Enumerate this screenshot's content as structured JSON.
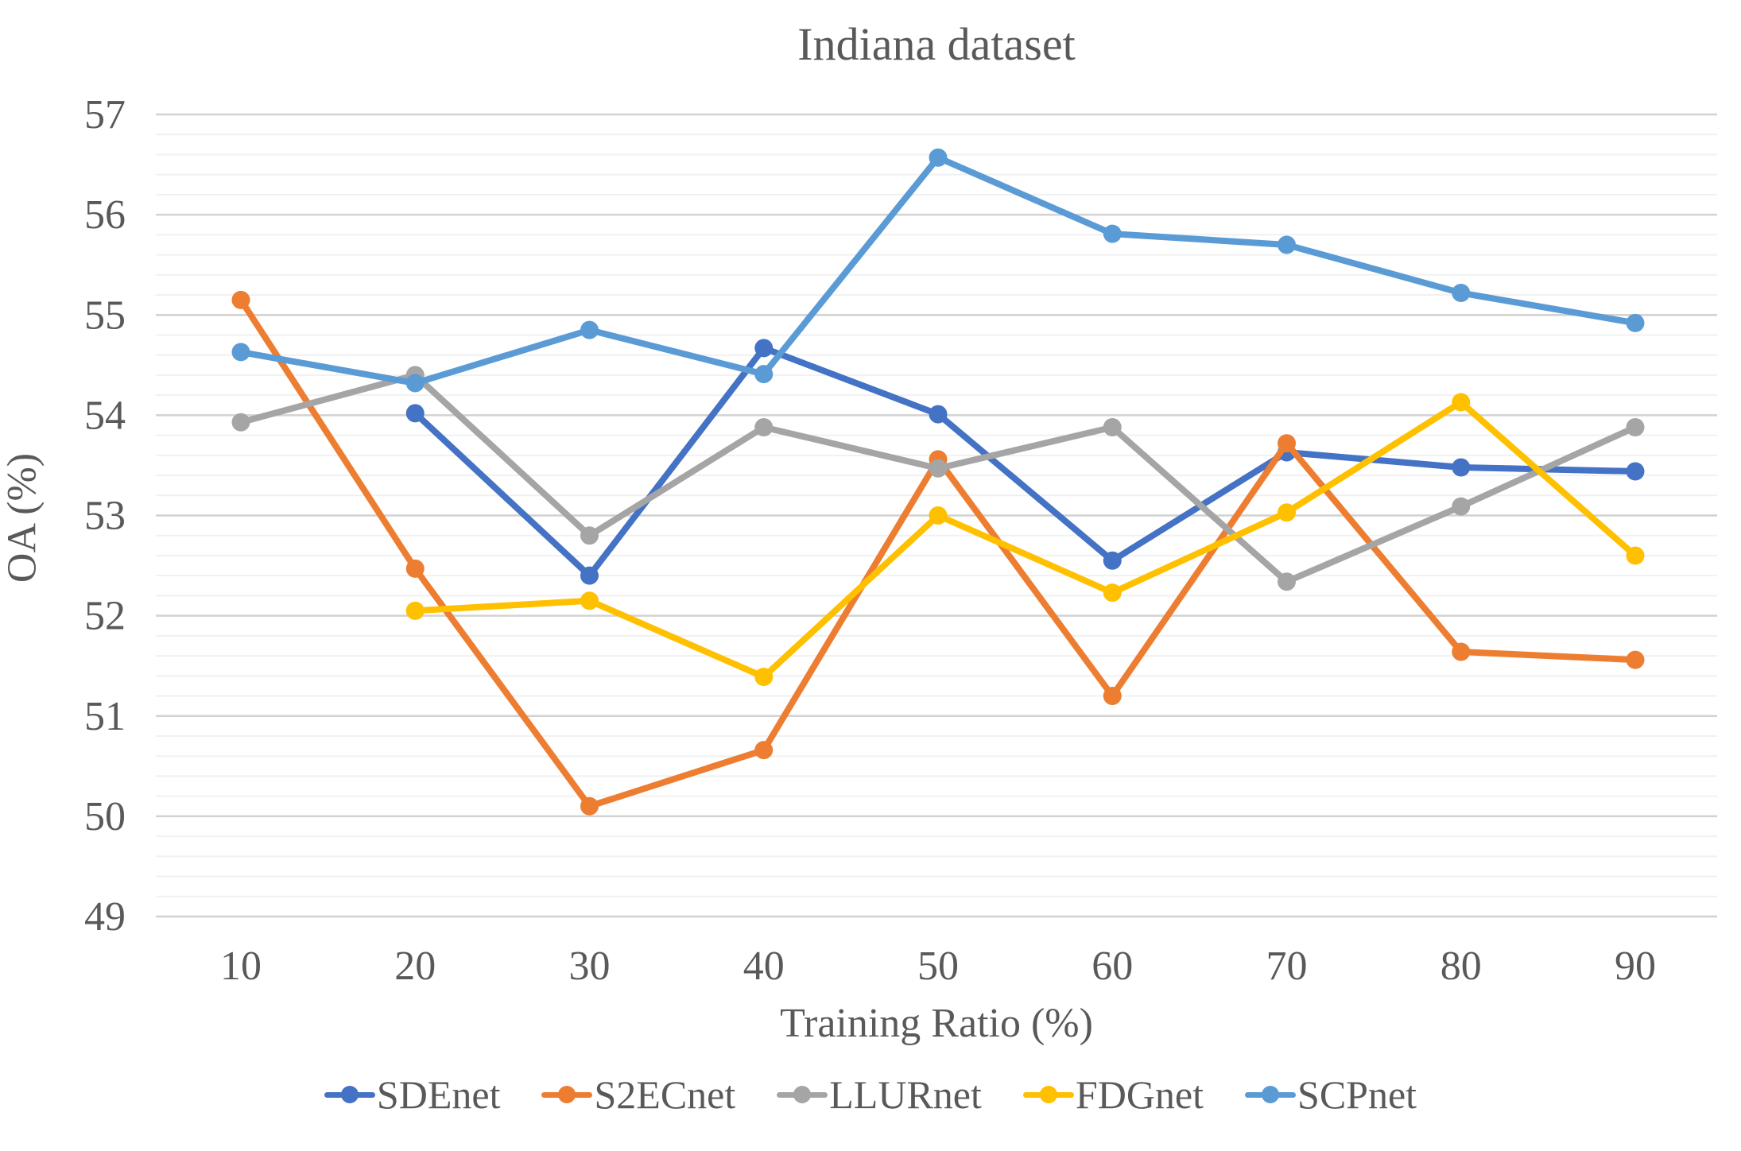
{
  "title": "Indiana dataset",
  "axes": {
    "y_label": "OA (%)",
    "x_label": "Training Ratio (%)"
  },
  "chart_data": {
    "type": "line",
    "title": "Indiana dataset",
    "xlabel": "Training Ratio (%)",
    "ylabel": "OA (%)",
    "x": [
      10,
      20,
      30,
      40,
      50,
      60,
      70,
      80,
      90
    ],
    "x_tick_labels": [
      "10",
      "20",
      "30",
      "40",
      "50",
      "60",
      "70",
      "80",
      "90"
    ],
    "y_ticks": [
      49,
      50,
      51,
      52,
      53,
      54,
      55,
      56,
      57
    ],
    "ylim": [
      49,
      57
    ],
    "y_minor_step": 0.2,
    "grid": true,
    "legend_position": "bottom",
    "series": [
      {
        "name": "SDEnet",
        "color": "#4472C4",
        "values": [
          null,
          54.02,
          52.4,
          54.67,
          54.01,
          52.55,
          53.63,
          53.48,
          53.44
        ]
      },
      {
        "name": "S2ECnet",
        "color": "#ED7D31",
        "values": [
          55.15,
          52.47,
          50.1,
          50.66,
          53.56,
          51.2,
          53.72,
          51.64,
          51.56
        ]
      },
      {
        "name": "LLURnet",
        "color": "#A5A5A5",
        "values": [
          53.93,
          54.4,
          52.8,
          53.88,
          53.47,
          53.88,
          52.34,
          53.09,
          53.88
        ]
      },
      {
        "name": "FDGnet",
        "color": "#FFC000",
        "values": [
          null,
          52.05,
          52.15,
          51.39,
          53.0,
          52.23,
          53.03,
          54.13,
          52.6
        ]
      },
      {
        "name": "SCPnet",
        "color": "#5B9BD5",
        "values": [
          54.63,
          54.32,
          54.85,
          54.41,
          56.57,
          55.81,
          55.7,
          55.22,
          54.92
        ]
      }
    ],
    "colors": {
      "grid_major": "#D2D2D2",
      "grid_minor": "#F1F1F1",
      "axis_text": "#595959"
    }
  }
}
